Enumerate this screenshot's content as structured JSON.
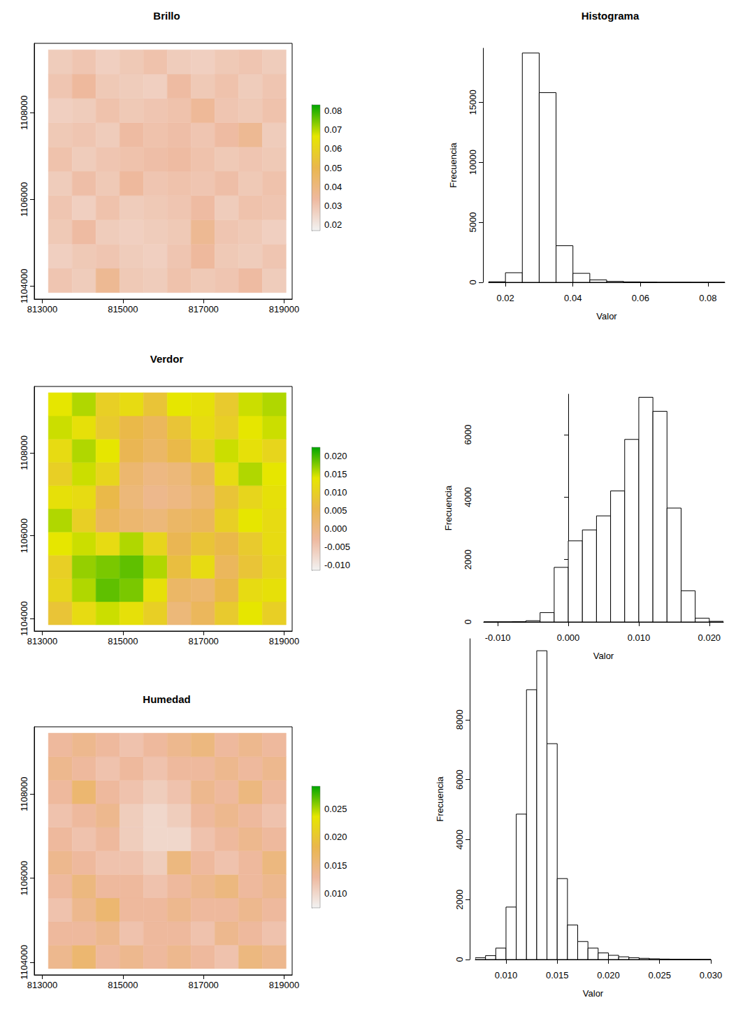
{
  "chart_data": [
    {
      "type": "heatmap",
      "title": "Brillo",
      "xlim": [
        812800,
        819200
      ],
      "ylim": [
        1103700,
        1109600
      ],
      "xticks": [
        813000,
        815000,
        817000,
        819000
      ],
      "yticks": [
        1104000,
        1106000,
        1108000
      ],
      "cells": {
        "x_edges": [
          813150,
          813740,
          814330,
          814920,
          815510,
          816100,
          816690,
          817280,
          817870,
          818460,
          819050
        ],
        "y_edges": [
          1103850,
          1104410,
          1104970,
          1105530,
          1106090,
          1106650,
          1107210,
          1107770,
          1108330,
          1108890,
          1109450
        ],
        "values": [
          [
            0.03,
            0.028,
            0.036,
            0.029,
            0.028,
            0.031,
            0.029,
            0.03,
            0.033,
            0.028
          ],
          [
            0.027,
            0.029,
            0.03,
            0.028,
            0.027,
            0.03,
            0.034,
            0.029,
            0.028,
            0.03
          ],
          [
            0.029,
            0.033,
            0.028,
            0.027,
            0.028,
            0.029,
            0.036,
            0.03,
            0.029,
            0.027
          ],
          [
            0.03,
            0.027,
            0.031,
            0.028,
            0.029,
            0.03,
            0.033,
            0.028,
            0.031,
            0.03
          ],
          [
            0.028,
            0.032,
            0.029,
            0.034,
            0.03,
            0.031,
            0.03,
            0.032,
            0.029,
            0.031
          ],
          [
            0.031,
            0.028,
            0.03,
            0.031,
            0.032,
            0.033,
            0.031,
            0.029,
            0.03,
            0.029
          ],
          [
            0.029,
            0.03,
            0.028,
            0.033,
            0.031,
            0.032,
            0.03,
            0.033,
            0.036,
            0.028
          ],
          [
            0.027,
            0.028,
            0.031,
            0.029,
            0.03,
            0.031,
            0.035,
            0.03,
            0.029,
            0.031
          ],
          [
            0.03,
            0.034,
            0.029,
            0.028,
            0.027,
            0.033,
            0.029,
            0.031,
            0.028,
            0.03
          ],
          [
            0.028,
            0.03,
            0.027,
            0.029,
            0.031,
            0.028,
            0.027,
            0.029,
            0.03,
            0.028
          ]
        ]
      },
      "colorbar": {
        "range": [
          0.017,
          0.083
        ],
        "ticks": [
          0.02,
          0.03,
          0.04,
          0.05,
          0.06,
          0.07,
          0.08
        ]
      }
    },
    {
      "type": "histogram",
      "title": "Histograma",
      "x_label": "Valor",
      "y_label": "Frecuencia",
      "bins": [
        0.015,
        0.02,
        0.025,
        0.03,
        0.035,
        0.04,
        0.045,
        0.05,
        0.055,
        0.06,
        0.065,
        0.07,
        0.075,
        0.08,
        0.085
      ],
      "values": [
        50,
        800,
        19100,
        15800,
        3050,
        750,
        200,
        80,
        40,
        20,
        10,
        10,
        5,
        5
      ],
      "xlim": [
        0.015,
        0.085
      ],
      "ylim": [
        0,
        19500
      ],
      "xticks": [
        0.02,
        0.04,
        0.06,
        0.08
      ],
      "yticks": [
        0,
        5000,
        10000,
        15000
      ]
    },
    {
      "type": "heatmap",
      "title": "Verdor",
      "xlim": [
        812800,
        819200
      ],
      "ylim": [
        1103700,
        1109600
      ],
      "xticks": [
        813000,
        815000,
        817000,
        819000
      ],
      "yticks": [
        1104000,
        1106000,
        1108000
      ],
      "cells": {
        "x_edges": [
          813150,
          813740,
          814330,
          814920,
          815510,
          816100,
          816690,
          817280,
          817870,
          818460,
          819050
        ],
        "y_edges": [
          1103850,
          1104410,
          1104970,
          1105530,
          1106090,
          1106650,
          1107210,
          1107770,
          1108330,
          1108890,
          1109450
        ],
        "values": [
          [
            0.008,
            0.012,
            0.015,
            0.013,
            0.01,
            0.001,
            0.004,
            0.009,
            0.014,
            0.01
          ],
          [
            0.011,
            0.016,
            0.019,
            0.018,
            0.013,
            0.003,
            0.002,
            0.006,
            0.012,
            0.013
          ],
          [
            0.01,
            0.017,
            0.018,
            0.019,
            0.016,
            0.007,
            0.012,
            0.004,
            0.008,
            0.011
          ],
          [
            0.014,
            0.015,
            0.012,
            0.016,
            0.011,
            0.005,
            0.008,
            0.006,
            0.009,
            0.012
          ],
          [
            0.016,
            0.01,
            0.004,
            0.002,
            0.001,
            0.003,
            0.004,
            0.01,
            0.014,
            0.012
          ],
          [
            0.013,
            0.012,
            0.006,
            0.001,
            -0.001,
            0.0,
            0.002,
            0.008,
            0.011,
            0.013
          ],
          [
            0.01,
            0.015,
            0.011,
            0.002,
            0.0,
            0.001,
            0.004,
            0.012,
            0.016,
            0.014
          ],
          [
            0.012,
            0.016,
            0.014,
            0.005,
            0.003,
            0.006,
            0.01,
            0.015,
            0.013,
            0.011
          ],
          [
            0.015,
            0.013,
            0.009,
            0.006,
            0.004,
            0.008,
            0.012,
            0.01,
            0.014,
            0.015
          ],
          [
            0.014,
            0.016,
            0.01,
            0.012,
            0.008,
            0.014,
            0.013,
            0.009,
            0.015,
            0.016
          ]
        ]
      },
      "colorbar": {
        "range": [
          -0.0115,
          0.0225
        ],
        "ticks": [
          {
            "value": -0.01,
            "label": "-0.010"
          },
          -0.005,
          {
            "value": 0,
            "label": "0.000"
          },
          0.005,
          {
            "value": 0.01,
            "label": "0.010"
          },
          0.015,
          {
            "value": 0.02,
            "label": "0.020"
          }
        ]
      }
    },
    {
      "type": "histogram",
      "x_label": "Valor",
      "y_label": "Frecuencia",
      "bins": [
        -0.012,
        -0.01,
        -0.008,
        -0.006,
        -0.004,
        -0.002,
        0,
        0.002,
        0.004,
        0.006,
        0.008,
        0.01,
        0.012,
        0.014,
        0.016,
        0.018,
        0.02,
        0.022
      ],
      "values": [
        5,
        5,
        10,
        40,
        300,
        1750,
        2600,
        2950,
        3400,
        4200,
        5850,
        7200,
        6750,
        3650,
        1000,
        120,
        20
      ],
      "xlim": [
        -0.012,
        0.022
      ],
      "ylim": [
        0,
        7300
      ],
      "xticks": [
        {
          "value": -0.01,
          "label": "-0.010"
        },
        {
          "value": 0,
          "label": "0.000"
        },
        {
          "value": 0.01,
          "label": "0.010"
        },
        {
          "value": 0.02,
          "label": "0.020"
        }
      ],
      "yticks": [
        0,
        2000,
        4000,
        6000
      ]
    },
    {
      "type": "heatmap",
      "title": "Humedad",
      "xlim": [
        812800,
        819200
      ],
      "ylim": [
        1103700,
        1109600
      ],
      "xticks": [
        813000,
        815000,
        817000,
        819000
      ],
      "yticks": [
        1104000,
        1106000,
        1108000
      ],
      "cells": {
        "x_edges": [
          813150,
          813740,
          814330,
          814920,
          815510,
          816100,
          816690,
          817280,
          817870,
          818460,
          819050
        ],
        "y_edges": [
          1103850,
          1104410,
          1104970,
          1105530,
          1106090,
          1106650,
          1107210,
          1107770,
          1108330,
          1108890,
          1109450
        ],
        "values": [
          [
            0.014,
            0.016,
            0.013,
            0.014,
            0.013,
            0.014,
            0.013,
            0.012,
            0.015,
            0.014
          ],
          [
            0.013,
            0.013,
            0.014,
            0.012,
            0.013,
            0.013,
            0.012,
            0.014,
            0.013,
            0.012
          ],
          [
            0.012,
            0.014,
            0.016,
            0.013,
            0.013,
            0.014,
            0.013,
            0.013,
            0.014,
            0.013
          ],
          [
            0.013,
            0.015,
            0.013,
            0.013,
            0.012,
            0.013,
            0.014,
            0.015,
            0.013,
            0.014
          ],
          [
            0.014,
            0.013,
            0.012,
            0.012,
            0.011,
            0.015,
            0.013,
            0.012,
            0.013,
            0.015
          ],
          [
            0.013,
            0.012,
            0.013,
            0.011,
            0.01,
            0.01,
            0.012,
            0.013,
            0.014,
            0.013
          ],
          [
            0.012,
            0.013,
            0.014,
            0.011,
            0.01,
            0.011,
            0.013,
            0.014,
            0.013,
            0.012
          ],
          [
            0.013,
            0.016,
            0.013,
            0.012,
            0.011,
            0.012,
            0.014,
            0.013,
            0.015,
            0.013
          ],
          [
            0.014,
            0.013,
            0.012,
            0.013,
            0.012,
            0.013,
            0.013,
            0.014,
            0.013,
            0.014
          ],
          [
            0.013,
            0.014,
            0.013,
            0.012,
            0.013,
            0.014,
            0.015,
            0.013,
            0.014,
            0.013
          ]
        ]
      },
      "colorbar": {
        "range": [
          0.0075,
          0.029
        ],
        "ticks": [
          {
            "value": 0.01,
            "label": "0.010"
          },
          0.015,
          {
            "value": 0.02,
            "label": "0.020"
          },
          0.025
        ]
      }
    },
    {
      "type": "histogram",
      "x_label": "Valor",
      "y_label": "Frecuencia",
      "bins": [
        0.007,
        0.008,
        0.009,
        0.01,
        0.011,
        0.012,
        0.013,
        0.014,
        0.015,
        0.016,
        0.017,
        0.018,
        0.019,
        0.02,
        0.021,
        0.022,
        0.023,
        0.024,
        0.025,
        0.026,
        0.027,
        0.028,
        0.029,
        0.03
      ],
      "values": [
        60,
        130,
        380,
        1750,
        4850,
        9000,
        10300,
        7200,
        2700,
        1150,
        600,
        380,
        220,
        140,
        90,
        60,
        40,
        25,
        15,
        10,
        8,
        5,
        3
      ],
      "xlim": [
        0.007,
        0.03
      ],
      "ylim": [
        0,
        10700
      ],
      "xticks": [
        {
          "value": 0.01,
          "label": "0.010"
        },
        0.015,
        {
          "value": 0.02,
          "label": "0.020"
        },
        0.025,
        {
          "value": 0.03,
          "label": "0.030"
        }
      ],
      "yticks": [
        0,
        2000,
        4000,
        6000,
        8000
      ]
    }
  ]
}
